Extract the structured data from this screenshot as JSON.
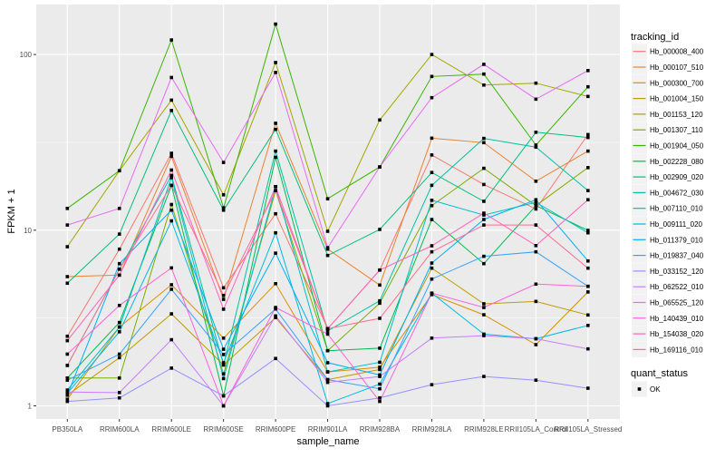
{
  "chart_data": {
    "type": "line",
    "title": "",
    "xlabel": "sample_name",
    "ylabel": "FPKM + 1",
    "yscale": "log10",
    "ylim": [
      0.84,
      192
    ],
    "yticks": [
      {
        "value": 1,
        "label": "1"
      },
      {
        "value": 10,
        "label": "10"
      },
      {
        "value": 100,
        "label": "100"
      }
    ],
    "grid": true,
    "legend_position": "right",
    "categories": [
      "PB350LA",
      "RRIM600LA",
      "RRIM600LE",
      "RRIM600SE",
      "RRIM600PE",
      "RRIM901LA",
      "RRIM928BA",
      "RRIM928LA",
      "RRIM928LE",
      "RRII105LA_Control",
      "RRII105LA_Stressed"
    ],
    "legend_title": "tracking_id",
    "series": [
      {
        "name": "Hb_000008_400",
        "color": "#F8766D",
        "values": [
          2.49,
          7.8,
          27.4,
          4.7,
          12.4,
          2.75,
          5.93,
          26.8,
          18.2,
          13.2,
          35.0
        ]
      },
      {
        "name": "Hb_000107_510",
        "color": "#EA8331",
        "values": [
          5.44,
          5.55,
          26.3,
          4.04,
          40.6,
          7.8,
          4.87,
          33.4,
          31.5,
          19.0,
          28.2
        ]
      },
      {
        "name": "Hb_000300_700",
        "color": "#D89000",
        "values": [
          1.09,
          2.81,
          4.89,
          2.43,
          4.96,
          1.56,
          1.66,
          4.3,
          3.3,
          2.23,
          4.45
        ]
      },
      {
        "name": "Hb_001004_150",
        "color": "#C09B00",
        "values": [
          1.15,
          1.88,
          3.34,
          1.71,
          3.18,
          1.41,
          1.61,
          6.08,
          3.81,
          3.93,
          3.29
        ]
      },
      {
        "name": "Hb_001153_120",
        "color": "#A3A500",
        "values": [
          8.05,
          21.8,
          55.0,
          15.9,
          90.0,
          9.86,
          42.4,
          100.0,
          67.0,
          68.7,
          57.7
        ]
      },
      {
        "name": "Hb_001307_110",
        "color": "#7CAE00",
        "values": [
          1.44,
          1.44,
          14.0,
          1.52,
          16.8,
          2.06,
          3.84,
          13.8,
          22.5,
          13.8,
          22.7
        ]
      },
      {
        "name": "Hb_001904_050",
        "color": "#39B600",
        "values": [
          13.3,
          21.8,
          121.0,
          13.4,
          149.0,
          15.1,
          22.9,
          75.0,
          77.4,
          30.5,
          65.5
        ]
      },
      {
        "name": "Hb_002228_080",
        "color": "#00BB4E",
        "values": [
          1.44,
          2.98,
          18.0,
          1.14,
          26.0,
          2.06,
          2.13,
          11.5,
          6.45,
          13.8,
          9.97
        ]
      },
      {
        "name": "Hb_002909_020",
        "color": "#00BF7D",
        "values": [
          4.99,
          9.5,
          48.0,
          13.0,
          37.5,
          7.18,
          10.1,
          21.3,
          14.6,
          36.1,
          33.7
        ]
      },
      {
        "name": "Hb_004672_030",
        "color": "#00C1A3",
        "values": [
          1.7,
          6.0,
          20.5,
          1.71,
          28.2,
          2.67,
          3.96,
          18.0,
          33.3,
          29.7,
          16.8
        ]
      },
      {
        "name": "Hb_007110_010",
        "color": "#00BFC4",
        "values": [
          1.23,
          2.81,
          19.9,
          1.43,
          17.7,
          1.56,
          1.77,
          14.8,
          12.2,
          14.4,
          9.66
        ]
      },
      {
        "name": "Hb_009111_020",
        "color": "#00BAE0",
        "values": [
          1.18,
          2.64,
          11.3,
          1.76,
          9.66,
          1.03,
          1.33,
          4.38,
          2.56,
          2.41,
          2.87
        ]
      },
      {
        "name": "Hb_011379_010",
        "color": "#00B0F6",
        "values": [
          1.15,
          6.45,
          13.0,
          2.1,
          7.4,
          1.76,
          1.5,
          6.5,
          11.5,
          14.9,
          6.68
        ]
      },
      {
        "name": "Hb_019837_040",
        "color": "#35A2FF",
        "values": [
          1.4,
          1.97,
          4.61,
          1.96,
          3.56,
          1.41,
          1.25,
          5.27,
          7.1,
          7.53,
          4.79
        ]
      },
      {
        "name": "Hb_033152_120",
        "color": "#9590FF",
        "values": [
          1.06,
          1.11,
          1.64,
          1.14,
          1.86,
          1.0,
          1.11,
          1.32,
          1.47,
          1.4,
          1.26
        ]
      },
      {
        "name": "Hb_062522_010",
        "color": "#C77CFF",
        "values": [
          1.2,
          1.19,
          2.38,
          1.0,
          3.25,
          1.36,
          1.47,
          2.43,
          2.51,
          2.41,
          2.11
        ]
      },
      {
        "name": "Hb_065525_120",
        "color": "#E76BF3",
        "values": [
          10.7,
          13.3,
          74.0,
          24.3,
          79.0,
          7.95,
          22.9,
          56.8,
          87.9,
          55.7,
          81.0
        ]
      },
      {
        "name": "Hb_140439_010",
        "color": "#FA62DB",
        "values": [
          1.97,
          3.73,
          6.1,
          1.0,
          3.63,
          2.56,
          1.06,
          4.38,
          3.63,
          4.93,
          4.79
        ]
      },
      {
        "name": "Hb_154038_020",
        "color": "#FF62BC",
        "values": [
          2.35,
          5.55,
          22.0,
          3.55,
          17.7,
          2.75,
          5.93,
          8.15,
          12.5,
          8.17,
          14.9
        ]
      },
      {
        "name": "Hb_169116_010",
        "color": "#FF6C91",
        "values": [
          1.7,
          6.0,
          18.0,
          4.25,
          16.8,
          2.75,
          3.15,
          7.53,
          10.7,
          10.7,
          6.08
        ]
      }
    ],
    "shape_legend": {
      "title": "quant_status",
      "items": [
        {
          "label": "OK",
          "shape": "square"
        }
      ]
    }
  },
  "colors": {
    "panel_background": "#EBEBEB",
    "grid": "#FFFFFF",
    "point": "#000000"
  }
}
